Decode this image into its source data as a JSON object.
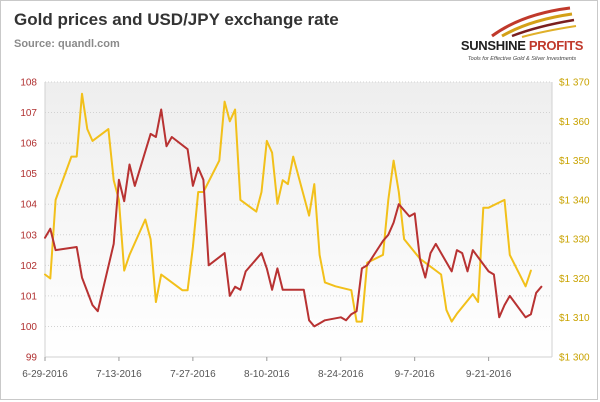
{
  "title": "Gold prices and USD/JPY exchange rate",
  "subtitle": "Source: quandl.com",
  "logo": {
    "name_part1": "SUNSHINE",
    "name_part2": "PROFITS",
    "tagline": "Tools for Effective Gold & Silver Investments"
  },
  "colors": {
    "usdjpy": "#b83232",
    "gold": "#f2c01a",
    "grid": "#d2d2d2",
    "plot_bg_top": "#eeeeee",
    "plot_bg_bottom": "#ffffff"
  },
  "chart_data": {
    "type": "line",
    "title": "Gold prices and USD/JPY exchange rate",
    "x_axis": {
      "type": "date",
      "range": [
        "2016-06-29",
        "2016-10-03"
      ],
      "tick_labels": [
        "6-29-2016",
        "7-13-2016",
        "7-27-2016",
        "8-10-2016",
        "8-24-2016",
        "9-7-2016",
        "9-21-2016"
      ],
      "tick_dates": [
        "2016-06-29",
        "2016-07-13",
        "2016-07-27",
        "2016-08-10",
        "2016-08-24",
        "2016-09-07",
        "2016-09-21"
      ]
    },
    "y_left": {
      "range": [
        99,
        108
      ],
      "tick_labels": [
        "99",
        "100",
        "101",
        "102",
        "103",
        "104",
        "105",
        "106",
        "107",
        "108"
      ],
      "tick_values": [
        99,
        100,
        101,
        102,
        103,
        104,
        105,
        106,
        107,
        108
      ]
    },
    "y_right": {
      "range": [
        1300,
        1370
      ],
      "tick_labels": [
        "$1 300",
        "$1 310",
        "$1 320",
        "$1 330",
        "$1 340",
        "$1 350",
        "$1 360",
        "$1 370"
      ],
      "tick_values": [
        1300,
        1310,
        1320,
        1330,
        1340,
        1350,
        1360,
        1370
      ]
    },
    "grid": true,
    "legend": "none",
    "series": [
      {
        "axis": "left",
        "color": "#b83232",
        "points": [
          [
            "2016-06-29",
            102.9
          ],
          [
            "2016-06-30",
            103.2
          ],
          [
            "2016-07-01",
            102.5
          ],
          [
            "2016-07-05",
            102.6
          ],
          [
            "2016-07-06",
            101.6
          ],
          [
            "2016-07-08",
            100.7
          ],
          [
            "2016-07-09",
            100.5
          ],
          [
            "2016-07-12",
            102.7
          ],
          [
            "2016-07-13",
            104.8
          ],
          [
            "2016-07-14",
            104.1
          ],
          [
            "2016-07-15",
            105.3
          ],
          [
            "2016-07-16",
            104.6
          ],
          [
            "2016-07-19",
            106.3
          ],
          [
            "2016-07-20",
            106.2
          ],
          [
            "2016-07-21",
            107.1
          ],
          [
            "2016-07-22",
            105.9
          ],
          [
            "2016-07-23",
            106.2
          ],
          [
            "2016-07-26",
            105.8
          ],
          [
            "2016-07-27",
            104.6
          ],
          [
            "2016-07-28",
            105.2
          ],
          [
            "2016-07-29",
            104.8
          ],
          [
            "2016-07-30",
            102.0
          ],
          [
            "2016-08-02",
            102.4
          ],
          [
            "2016-08-03",
            101.0
          ],
          [
            "2016-08-04",
            101.3
          ],
          [
            "2016-08-05",
            101.2
          ],
          [
            "2016-08-06",
            101.8
          ],
          [
            "2016-08-09",
            102.4
          ],
          [
            "2016-08-10",
            101.9
          ],
          [
            "2016-08-11",
            101.2
          ],
          [
            "2016-08-12",
            101.9
          ],
          [
            "2016-08-13",
            101.2
          ],
          [
            "2016-08-17",
            101.2
          ],
          [
            "2016-08-18",
            100.2
          ],
          [
            "2016-08-19",
            100.0
          ],
          [
            "2016-08-20",
            100.1
          ],
          [
            "2016-08-21",
            100.2
          ],
          [
            "2016-08-24",
            100.3
          ],
          [
            "2016-08-25",
            100.2
          ],
          [
            "2016-08-26",
            100.4
          ],
          [
            "2016-08-27",
            100.5
          ],
          [
            "2016-08-28",
            101.9
          ],
          [
            "2016-08-29",
            102.0
          ],
          [
            "2016-09-01",
            102.8
          ],
          [
            "2016-09-02",
            103.0
          ],
          [
            "2016-09-03",
            103.4
          ],
          [
            "2016-09-04",
            104.0
          ],
          [
            "2016-09-06",
            103.6
          ],
          [
            "2016-09-07",
            103.7
          ],
          [
            "2016-09-08",
            102.2
          ],
          [
            "2016-09-09",
            101.6
          ],
          [
            "2016-09-10",
            102.4
          ],
          [
            "2016-09-11",
            102.7
          ],
          [
            "2016-09-14",
            101.8
          ],
          [
            "2016-09-15",
            102.5
          ],
          [
            "2016-09-16",
            102.4
          ],
          [
            "2016-09-17",
            101.8
          ],
          [
            "2016-09-18",
            102.5
          ],
          [
            "2016-09-21",
            101.8
          ],
          [
            "2016-09-22",
            101.7
          ],
          [
            "2016-09-23",
            100.3
          ],
          [
            "2016-09-24",
            100.7
          ],
          [
            "2016-09-25",
            101.0
          ],
          [
            "2016-09-28",
            100.3
          ],
          [
            "2016-09-29",
            100.4
          ],
          [
            "2016-09-30",
            101.1
          ],
          [
            "2016-10-01",
            101.3
          ]
        ]
      },
      {
        "axis": "right",
        "color": "#f2c01a",
        "points": [
          [
            "2016-06-29",
            1321
          ],
          [
            "2016-06-30",
            1320
          ],
          [
            "2016-07-01",
            1340
          ],
          [
            "2016-07-04",
            1351
          ],
          [
            "2016-07-05",
            1351
          ],
          [
            "2016-07-06",
            1367
          ],
          [
            "2016-07-07",
            1358
          ],
          [
            "2016-07-08",
            1355
          ],
          [
            "2016-07-11",
            1358
          ],
          [
            "2016-07-12",
            1345
          ],
          [
            "2016-07-13",
            1340
          ],
          [
            "2016-07-14",
            1322
          ],
          [
            "2016-07-15",
            1326
          ],
          [
            "2016-07-18",
            1335
          ],
          [
            "2016-07-19",
            1330
          ],
          [
            "2016-07-20",
            1314
          ],
          [
            "2016-07-21",
            1321
          ],
          [
            "2016-07-22",
            1320
          ],
          [
            "2016-07-25",
            1317
          ],
          [
            "2016-07-26",
            1317
          ],
          [
            "2016-07-27",
            1328
          ],
          [
            "2016-07-28",
            1342
          ],
          [
            "2016-07-29",
            1342
          ],
          [
            "2016-08-01",
            1350
          ],
          [
            "2016-08-02",
            1365
          ],
          [
            "2016-08-03",
            1360
          ],
          [
            "2016-08-04",
            1363
          ],
          [
            "2016-08-05",
            1340
          ],
          [
            "2016-08-08",
            1337
          ],
          [
            "2016-08-09",
            1342
          ],
          [
            "2016-08-10",
            1355
          ],
          [
            "2016-08-11",
            1352
          ],
          [
            "2016-08-12",
            1339
          ],
          [
            "2016-08-13",
            1345
          ],
          [
            "2016-08-14",
            1344
          ],
          [
            "2016-08-15",
            1351
          ],
          [
            "2016-08-18",
            1336
          ],
          [
            "2016-08-19",
            1344
          ],
          [
            "2016-08-20",
            1326
          ],
          [
            "2016-08-21",
            1319
          ],
          [
            "2016-08-23",
            1318
          ],
          [
            "2016-08-26",
            1317
          ],
          [
            "2016-08-27",
            1309
          ],
          [
            "2016-08-28",
            1309
          ],
          [
            "2016-08-29",
            1324
          ],
          [
            "2016-09-01",
            1326
          ],
          [
            "2016-09-02",
            1340
          ],
          [
            "2016-09-03",
            1350
          ],
          [
            "2016-09-04",
            1342
          ],
          [
            "2016-09-05",
            1330
          ],
          [
            "2016-09-08",
            1325
          ],
          [
            "2016-09-09",
            1324
          ],
          [
            "2016-09-12",
            1321
          ],
          [
            "2016-09-13",
            1312
          ],
          [
            "2016-09-14",
            1309
          ],
          [
            "2016-09-15",
            1311
          ],
          [
            "2016-09-18",
            1316
          ],
          [
            "2016-09-19",
            1314
          ],
          [
            "2016-09-20",
            1338
          ],
          [
            "2016-09-21",
            1338
          ],
          [
            "2016-09-24",
            1340
          ],
          [
            "2016-09-25",
            1326
          ],
          [
            "2016-09-28",
            1318
          ],
          [
            "2016-09-29",
            1322
          ]
        ]
      }
    ]
  }
}
